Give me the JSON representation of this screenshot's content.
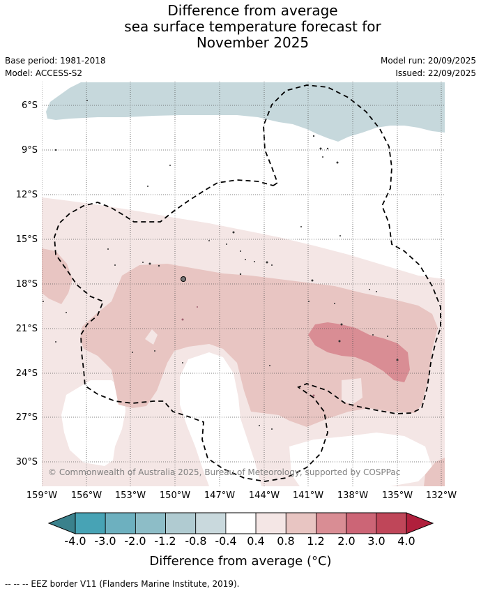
{
  "title": {
    "line1": "Difference from average",
    "line2": "sea surface temperature forecast for",
    "line3": "November 2025"
  },
  "meta": {
    "base_period": "Base period: 1981-2018",
    "model": "Model: ACCESS-S2",
    "model_run": "Model run: 20/09/2025",
    "issued": "Issued: 22/09/2025"
  },
  "map": {
    "copyright": "© Commonwealth of Australia 2025, Bureau of Meteorology, supported by COSPPac",
    "lat_labels": [
      "6°S",
      "9°S",
      "12°S",
      "15°S",
      "18°S",
      "21°S",
      "24°S",
      "27°S",
      "30°S"
    ],
    "lon_labels": [
      "159°W",
      "156°W",
      "153°W",
      "150°W",
      "147°W",
      "144°W",
      "141°W",
      "138°W",
      "135°W",
      "132°W"
    ]
  },
  "colorbar": {
    "labels": [
      "-4.0",
      "-3.0",
      "-2.0",
      "-1.2",
      "-0.8",
      "-0.4",
      "0.4",
      "0.8",
      "1.2",
      "2.0",
      "3.0",
      "4.0"
    ],
    "colors": [
      "#47a3b5",
      "#6db0bf",
      "#8dbdc7",
      "#b0cbd1",
      "#c9d9dd",
      "#ffffff",
      "#f4e6e5",
      "#e8c5c2",
      "#d98d94",
      "#cc6576",
      "#bf4659"
    ],
    "under_color": "#3a818c",
    "over_color": "#b01f3c",
    "title": "Difference from average (°C)"
  },
  "footnote": "--  --  -- EEZ border V11 (Flanders Marine Institute, 2019)."
}
